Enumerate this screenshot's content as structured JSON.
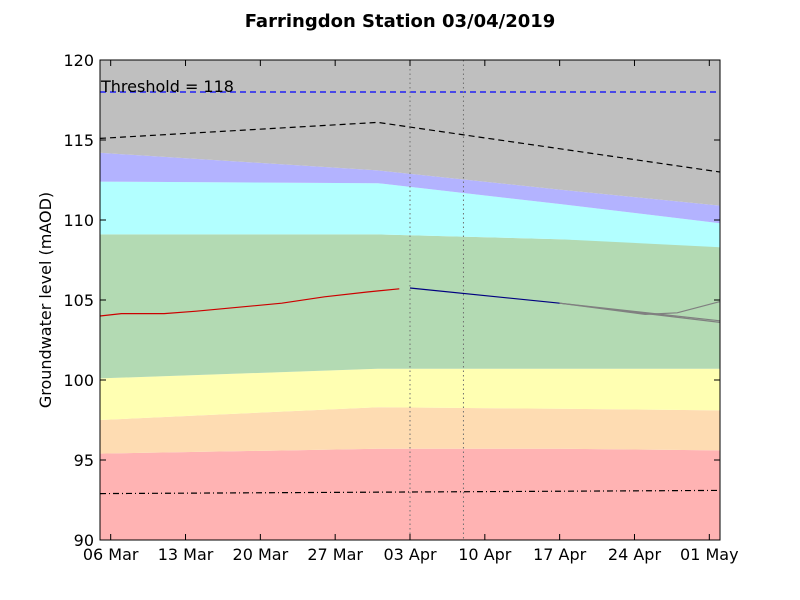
{
  "chart_data": {
    "type": "area",
    "title": "Farringdon Station 03/04/2019",
    "xlabel": "",
    "ylabel": "Groundwater level (mAOD)",
    "ylim": [
      90,
      120
    ],
    "y_ticks": [
      90,
      95,
      100,
      105,
      110,
      115,
      120
    ],
    "x_start": "2019-03-05",
    "x_end": "2019-05-02",
    "x_ticks": [
      {
        "date": "2019-03-06",
        "label": "06 Mar"
      },
      {
        "date": "2019-03-13",
        "label": "13 Mar"
      },
      {
        "date": "2019-03-20",
        "label": "20 Mar"
      },
      {
        "date": "2019-03-27",
        "label": "27 Mar"
      },
      {
        "date": "2019-04-03",
        "label": "03 Apr"
      },
      {
        "date": "2019-04-10",
        "label": "10 Apr"
      },
      {
        "date": "2019-04-17",
        "label": "17 Apr"
      },
      {
        "date": "2019-04-24",
        "label": "24 Apr"
      },
      {
        "date": "2019-05-01",
        "label": "01 May"
      }
    ],
    "grid": false,
    "threshold": {
      "value": 118,
      "label": "Threshold = 118",
      "color": "#0000ff"
    },
    "vertical_markers": [
      "2019-04-03",
      "2019-04-08"
    ],
    "bands": [
      {
        "color": "#ffb3b3",
        "x": [
          "2019-03-05",
          "2019-03-31",
          "2019-04-17",
          "2019-05-02"
        ],
        "lower": [
          90,
          90,
          90,
          90
        ],
        "upper": [
          95.4,
          95.7,
          95.7,
          95.6
        ]
      },
      {
        "color": "#fedcb2",
        "x": [
          "2019-03-05",
          "2019-03-31",
          "2019-04-17",
          "2019-05-02"
        ],
        "lower": [
          95.4,
          95.7,
          95.7,
          95.6
        ],
        "upper": [
          97.5,
          98.3,
          98.2,
          98.1
        ]
      },
      {
        "color": "#ffffb2",
        "x": [
          "2019-03-05",
          "2019-03-31",
          "2019-04-17",
          "2019-05-02"
        ],
        "lower": [
          97.5,
          98.3,
          98.2,
          98.1
        ],
        "upper": [
          100.1,
          100.7,
          100.7,
          100.7
        ]
      },
      {
        "color": "#b3dab3",
        "x": [
          "2019-03-05",
          "2019-03-31",
          "2019-04-17",
          "2019-04-28",
          "2019-05-02"
        ],
        "lower": [
          100.1,
          100.7,
          100.7,
          100.7,
          100.7
        ],
        "upper": [
          109.1,
          109.1,
          108.8,
          108.6,
          108.3
        ]
      },
      {
        "color": "#b2ffff",
        "x": [
          "2019-03-05",
          "2019-03-31",
          "2019-04-17",
          "2019-05-02"
        ],
        "lower": [
          109.1,
          109.1,
          108.8,
          108.3
        ],
        "upper": [
          112.4,
          112.3,
          111.0,
          109.8
        ]
      },
      {
        "color": "#b3b3ff",
        "x": [
          "2019-03-05",
          "2019-03-31",
          "2019-04-17",
          "2019-05-02"
        ],
        "lower": [
          112.4,
          112.3,
          111.0,
          109.8
        ],
        "upper": [
          114.2,
          113.1,
          111.9,
          110.9
        ]
      },
      {
        "color": "#bfbfbf",
        "x": [
          "2019-03-05",
          "2019-03-31",
          "2019-04-17",
          "2019-05-02"
        ],
        "lower": [
          114.2,
          113.1,
          111.9,
          110.9
        ],
        "upper": [
          120,
          120,
          120,
          120
        ]
      }
    ],
    "series": [
      {
        "style": "dashed",
        "color": "#000000",
        "x": [
          "2019-03-05",
          "2019-03-31",
          "2019-05-02"
        ],
        "values": [
          115.1,
          116.1,
          113.0
        ]
      },
      {
        "style": "dashdot",
        "color": "#000000",
        "x": [
          "2019-03-05",
          "2019-05-02"
        ],
        "values": [
          92.9,
          93.1
        ]
      },
      {
        "style": "solid",
        "color": "#cc0000",
        "x": [
          "2019-03-05",
          "2019-03-07",
          "2019-03-11",
          "2019-03-14",
          "2019-03-18",
          "2019-03-22",
          "2019-03-26",
          "2019-03-30",
          "2019-04-02"
        ],
        "values": [
          104.0,
          104.15,
          104.15,
          104.3,
          104.55,
          104.8,
          105.2,
          105.5,
          105.7
        ]
      },
      {
        "style": "solid",
        "color": "#000080",
        "x": [
          "2019-04-03",
          "2019-04-17"
        ],
        "values": [
          105.75,
          104.8
        ]
      },
      {
        "style": "solid",
        "color": "#808080",
        "x": [
          "2019-04-17",
          "2019-05-02"
        ],
        "values": [
          104.8,
          103.7
        ]
      },
      {
        "style": "solid",
        "color": "#808080",
        "x": [
          "2019-04-17",
          "2019-04-25",
          "2019-04-28",
          "2019-05-02"
        ],
        "values": [
          104.8,
          104.1,
          104.2,
          104.9
        ]
      },
      {
        "style": "solid",
        "color": "#808080",
        "x": [
          "2019-04-17",
          "2019-05-02"
        ],
        "values": [
          104.8,
          103.6
        ]
      }
    ]
  }
}
